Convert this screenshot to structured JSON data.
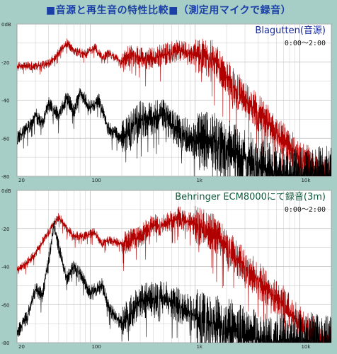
{
  "title": "■音源と再生音の特性比較■（測定用マイクで録音）",
  "colors": {
    "source": "#b00000",
    "recorded": "#000000",
    "background": "#a7cec6",
    "grid": "#bdbdbd"
  },
  "chart_data": [
    {
      "type": "line",
      "label": "Blagutten(音源)",
      "time_range": "0:00～2:00",
      "xscale": "log",
      "xlim": [
        20,
        20000
      ],
      "ylim": [
        -80,
        0
      ],
      "x_ticks": [
        "20",
        "100",
        "1k",
        "10k"
      ],
      "y_ticks": [
        "0dB",
        "-20",
        "-40",
        "-60",
        "-80"
      ],
      "grid": true,
      "series": [
        {
          "color": "#b00000",
          "points": [
            [
              20,
              -22
            ],
            [
              30,
              -22
            ],
            [
              40,
              -21
            ],
            [
              50,
              -15
            ],
            [
              60,
              -10
            ],
            [
              70,
              -14
            ],
            [
              90,
              -16
            ],
            [
              110,
              -12
            ],
            [
              130,
              -18
            ],
            [
              150,
              -15
            ],
            [
              200,
              -20
            ],
            [
              250,
              -16
            ],
            [
              300,
              -18
            ],
            [
              400,
              -18
            ],
            [
              500,
              -16
            ],
            [
              700,
              -14
            ],
            [
              1000,
              -16
            ],
            [
              1500,
              -18
            ],
            [
              2000,
              -28
            ],
            [
              3000,
              -40
            ],
            [
              5000,
              -52
            ],
            [
              7000,
              -62
            ],
            [
              10000,
              -70
            ],
            [
              15000,
              -78
            ],
            [
              20000,
              -80
            ]
          ]
        },
        {
          "color": "#000000",
          "points": [
            [
              20,
              -60
            ],
            [
              25,
              -55
            ],
            [
              30,
              -48
            ],
            [
              35,
              -52
            ],
            [
              40,
              -42
            ],
            [
              50,
              -48
            ],
            [
              60,
              -38
            ],
            [
              70,
              -46
            ],
            [
              80,
              -36
            ],
            [
              100,
              -44
            ],
            [
              120,
              -40
            ],
            [
              150,
              -55
            ],
            [
              200,
              -60
            ],
            [
              300,
              -50
            ],
            [
              500,
              -48
            ],
            [
              700,
              -56
            ],
            [
              1000,
              -62
            ],
            [
              1500,
              -60
            ],
            [
              2000,
              -66
            ],
            [
              3000,
              -70
            ],
            [
              5000,
              -78
            ],
            [
              7000,
              -80
            ],
            [
              10000,
              -80
            ],
            [
              20000,
              -80
            ]
          ]
        }
      ]
    },
    {
      "type": "line",
      "label": "Behringer ECM8000にて録音(3m)",
      "time_range": "0:00～2:00",
      "xscale": "log",
      "xlim": [
        20,
        20000
      ],
      "ylim": [
        -80,
        0
      ],
      "x_ticks": [
        "20",
        "100",
        "1k",
        "10k"
      ],
      "y_ticks": [
        "0dB",
        "-20",
        "-40",
        "-60",
        "-80"
      ],
      "grid": true,
      "series": [
        {
          "color": "#b00000",
          "points": [
            [
              20,
              -42
            ],
            [
              25,
              -38
            ],
            [
              30,
              -33
            ],
            [
              40,
              -22
            ],
            [
              50,
              -14
            ],
            [
              60,
              -20
            ],
            [
              70,
              -24
            ],
            [
              90,
              -24
            ],
            [
              110,
              -22
            ],
            [
              130,
              -28
            ],
            [
              150,
              -26
            ],
            [
              200,
              -28
            ],
            [
              300,
              -24
            ],
            [
              400,
              -18
            ],
            [
              500,
              -18
            ],
            [
              700,
              -14
            ],
            [
              1000,
              -18
            ],
            [
              1500,
              -22
            ],
            [
              2000,
              -30
            ],
            [
              3000,
              -40
            ],
            [
              5000,
              -52
            ],
            [
              7000,
              -60
            ],
            [
              10000,
              -70
            ],
            [
              15000,
              -78
            ],
            [
              20000,
              -80
            ]
          ]
        },
        {
          "color": "#000000",
          "points": [
            [
              20,
              -75
            ],
            [
              25,
              -66
            ],
            [
              30,
              -52
            ],
            [
              35,
              -55
            ],
            [
              40,
              -36
            ],
            [
              45,
              -18
            ],
            [
              50,
              -30
            ],
            [
              60,
              -46
            ],
            [
              70,
              -40
            ],
            [
              80,
              -44
            ],
            [
              100,
              -54
            ],
            [
              130,
              -50
            ],
            [
              150,
              -62
            ],
            [
              200,
              -70
            ],
            [
              300,
              -58
            ],
            [
              500,
              -56
            ],
            [
              700,
              -60
            ],
            [
              1000,
              -66
            ],
            [
              1500,
              -70
            ],
            [
              2000,
              -72
            ],
            [
              3000,
              -76
            ],
            [
              5000,
              -80
            ],
            [
              20000,
              -80
            ]
          ]
        }
      ]
    }
  ]
}
